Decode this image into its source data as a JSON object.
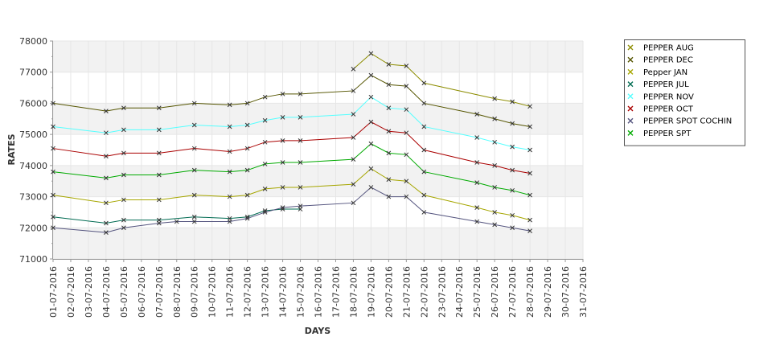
{
  "chart_data": {
    "type": "line",
    "title": "",
    "xlabel": "DAYS",
    "ylabel": "RATES",
    "ylim": [
      71000,
      78000
    ],
    "yticks": [
      71000,
      72000,
      73000,
      74000,
      75000,
      76000,
      77000,
      78000
    ],
    "grid": "alternating horizontal bands",
    "legend_position": "right",
    "categories": [
      "01-07-2016",
      "02-07-2016",
      "03-07-2016",
      "04-07-2016",
      "05-07-2016",
      "06-07-2016",
      "07-07-2016",
      "08-07-2016",
      "09-07-2016",
      "10-07-2016",
      "11-07-2016",
      "12-07-2016",
      "13-07-2016",
      "14-07-2016",
      "15-07-2016",
      "16-07-2016",
      "17-07-2016",
      "18-07-2016",
      "19-07-2016",
      "20-07-2016",
      "21-07-2016",
      "22-07-2016",
      "23-07-2016",
      "24-07-2016",
      "25-07-2016",
      "26-07-2016",
      "27-07-2016",
      "28-07-2016",
      "29-07-2016",
      "30-07-2016",
      "31-07-2016"
    ],
    "series": [
      {
        "name": "PEPPER AUG",
        "color": "#8d8d00",
        "values": [
          null,
          null,
          null,
          null,
          null,
          null,
          null,
          null,
          null,
          null,
          null,
          null,
          null,
          null,
          null,
          null,
          null,
          77100,
          77600,
          77250,
          77200,
          76650,
          null,
          null,
          null,
          76150,
          76050,
          75900,
          null,
          null,
          null
        ]
      },
      {
        "name": "PEPPER DEC",
        "color": "#555500",
        "values": [
          76000,
          null,
          null,
          75750,
          75850,
          null,
          75850,
          null,
          76000,
          null,
          75950,
          76000,
          76200,
          76300,
          76300,
          null,
          null,
          76400,
          76900,
          76600,
          76550,
          76000,
          null,
          null,
          75650,
          75500,
          75350,
          75250,
          null,
          null,
          null
        ]
      },
      {
        "name": "Pepper JAN",
        "color": "#a6a600",
        "values": [
          73050,
          null,
          null,
          72800,
          72900,
          null,
          72900,
          null,
          73050,
          null,
          73000,
          73050,
          73250,
          73300,
          73300,
          null,
          null,
          73400,
          73900,
          73550,
          73500,
          73050,
          null,
          null,
          72650,
          72500,
          72400,
          72250,
          null,
          null,
          null
        ]
      },
      {
        "name": "PEPPER JUL",
        "color": "#006b52",
        "values": [
          72350,
          null,
          null,
          72150,
          72250,
          null,
          72250,
          null,
          72350,
          null,
          72300,
          72350,
          72550,
          72600,
          72600,
          null,
          null,
          null,
          null,
          null,
          null,
          null,
          null,
          null,
          null,
          null,
          null,
          null,
          null,
          null,
          null
        ]
      },
      {
        "name": "PEPPER NOV",
        "color": "#55ffff",
        "values": [
          75250,
          null,
          null,
          75050,
          75150,
          null,
          75150,
          null,
          75300,
          null,
          75250,
          75300,
          75450,
          75550,
          75550,
          null,
          null,
          75650,
          76200,
          75850,
          75800,
          75250,
          null,
          null,
          74900,
          74750,
          74600,
          74500,
          null,
          null,
          null
        ]
      },
      {
        "name": "PEPPER OCT",
        "color": "#aa0000",
        "values": [
          74550,
          null,
          null,
          74300,
          74400,
          null,
          74400,
          null,
          74550,
          null,
          74450,
          74550,
          74750,
          74800,
          74800,
          null,
          null,
          74900,
          75400,
          75100,
          75050,
          74500,
          null,
          null,
          74100,
          74000,
          73850,
          73750,
          null,
          null,
          null
        ]
      },
      {
        "name": "PEPPER SPOT COCHIN",
        "color": "#55557f",
        "values": [
          72000,
          null,
          null,
          71850,
          72000,
          null,
          72150,
          72200,
          72200,
          null,
          72200,
          72300,
          72500,
          72650,
          72700,
          null,
          null,
          72800,
          73300,
          73000,
          73000,
          72500,
          null,
          null,
          72200,
          72100,
          72000,
          71900,
          null,
          null,
          null
        ]
      },
      {
        "name": "PEPPER SPT",
        "color": "#00aa00",
        "values": [
          73800,
          null,
          null,
          73600,
          73700,
          null,
          73700,
          null,
          73850,
          null,
          73800,
          73850,
          74050,
          74100,
          74100,
          null,
          null,
          74200,
          74700,
          74400,
          74350,
          73800,
          null,
          null,
          73450,
          73300,
          73200,
          73050,
          null,
          null,
          null
        ]
      }
    ]
  }
}
